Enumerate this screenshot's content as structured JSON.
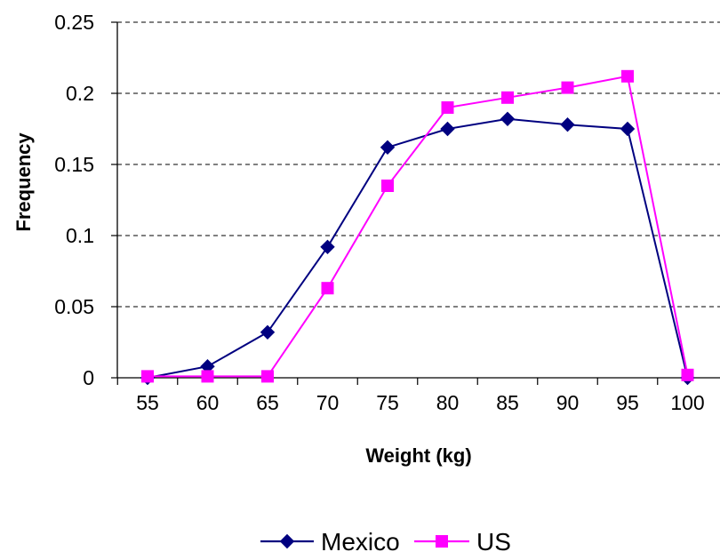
{
  "chart_data": {
    "type": "line",
    "title": "",
    "xlabel": "Weight (kg)",
    "ylabel": "Frequency",
    "categories": [
      "55",
      "60",
      "65",
      "70",
      "75",
      "80",
      "85",
      "90",
      "95",
      "100"
    ],
    "y_ticks": [
      "0",
      "0.05",
      "0.1",
      "0.15",
      "0.2",
      "0.25"
    ],
    "ylim": [
      0,
      0.25
    ],
    "grid": "horizontal dashed",
    "legend_position": "bottom",
    "series": [
      {
        "name": "Mexico",
        "color": "#000080",
        "marker": "diamond",
        "values": [
          0,
          0.008,
          0.032,
          0.092,
          0.162,
          0.175,
          0.182,
          0.178,
          0.175,
          0
        ]
      },
      {
        "name": "US",
        "color": "#FF00FF",
        "marker": "square",
        "values": [
          0.001,
          0.001,
          0.001,
          0.063,
          0.135,
          0.19,
          0.197,
          0.204,
          0.212,
          0.002
        ]
      }
    ]
  }
}
